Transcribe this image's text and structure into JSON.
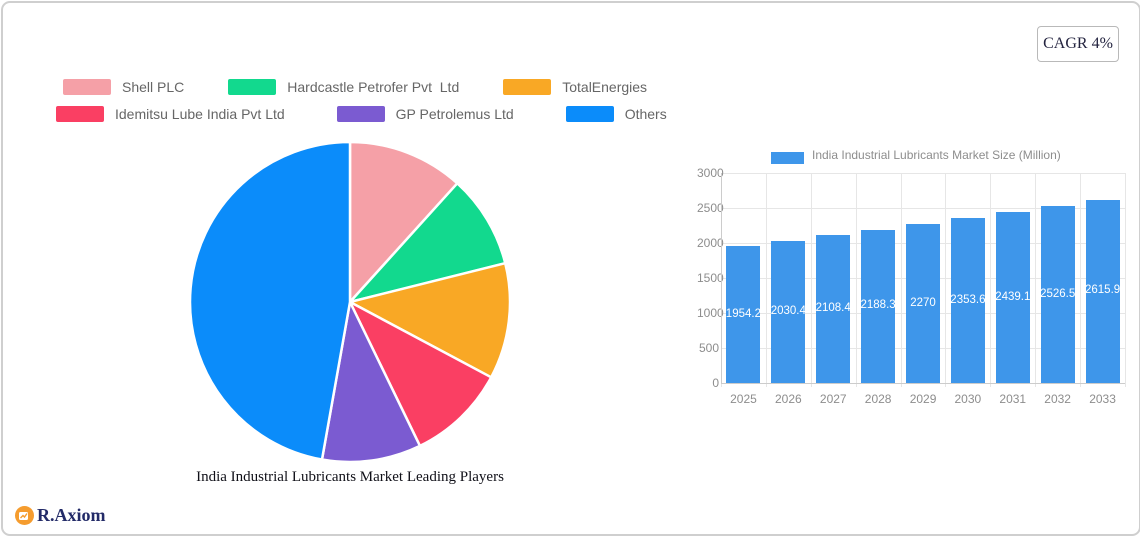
{
  "header": {
    "cagr_label": "CAGR 4%"
  },
  "brand": {
    "name": "R.Axiom",
    "icon": "chart-logo-icon",
    "icon_color": "#F59C2E",
    "text_color": "#232B68"
  },
  "chart_data": [
    {
      "type": "pie",
      "title": "India Industrial Lubricants Market Leading Players",
      "labels": [
        "Shell PLC",
        "Hardcastle Petrofer Pvt  Ltd",
        "TotalEnergies",
        "Idemitsu Lube India Pvt Ltd",
        "GP Petrolemus Ltd",
        "Others"
      ],
      "values_percent": [
        11.7,
        9.4,
        11.7,
        10.0,
        10.0,
        47.2
      ],
      "colors": [
        "#F5A0A7",
        "#12D98E",
        "#F9A825",
        "#FA3F63",
        "#7B5BD1",
        "#0B8CFA"
      ],
      "start_angle_deg": 0,
      "direction": "clockwise",
      "slice_border_color": "#ffffff",
      "legend_position": "top-left"
    },
    {
      "type": "bar",
      "series_label": "India Industrial Lubricants Market Size (Million)",
      "categories": [
        "2025",
        "2026",
        "2027",
        "2028",
        "2029",
        "2030",
        "2031",
        "2032",
        "2033"
      ],
      "values": [
        1954.2,
        2030.4,
        2108.4,
        2188.3,
        2270,
        2353.6,
        2439.1,
        2526.5,
        2615.9
      ],
      "value_labels": [
        "1954.2",
        "2030.4",
        "2108.4",
        "2188.3",
        "2270",
        "2353.6",
        "2439.1",
        "2526.5",
        "2615.9"
      ],
      "bar_color": "#3E96EA",
      "value_label_color": "#ffffff",
      "ylim": [
        0,
        3000
      ],
      "yticks": [
        "0",
        "500",
        "1000",
        "1500",
        "2000",
        "2500",
        "3000"
      ],
      "grid": true,
      "axis_text_color": "#8d8d8d",
      "grid_color": "#e6e6e6",
      "axis_line_color": "#cccccc",
      "legend_position": "top"
    }
  ]
}
